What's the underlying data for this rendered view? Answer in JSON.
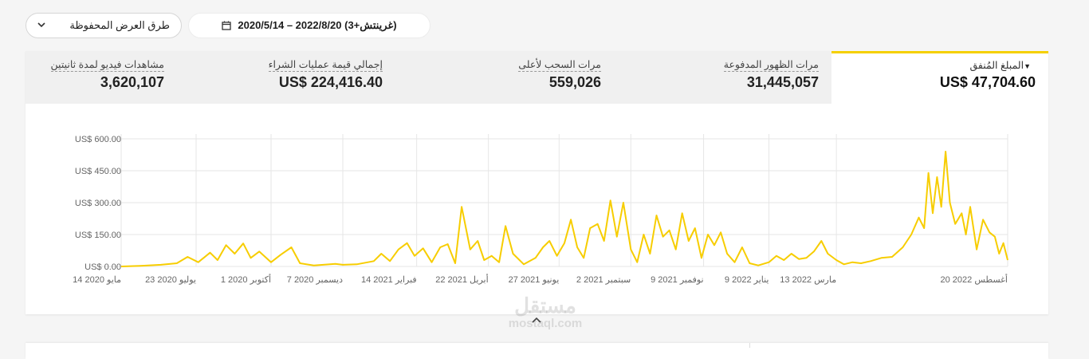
{
  "toolbar": {
    "saved_views_label": "طرق العرض المحفوظة",
    "date_range_label": "2020/5/14 – 2022/8/20 (غرينتش+3)",
    "chevron_icon": "chevron-down-icon",
    "calendar_icon": "calendar-icon"
  },
  "metrics": [
    {
      "label": "المبلغ المُنفق",
      "value": "US$ 47,704.60",
      "active": true
    },
    {
      "label": "مرات الظهور المدفوعة",
      "value": "31,445,057"
    },
    {
      "label": "مرات السحب لأعلى",
      "value": "559,026"
    },
    {
      "label": "إجمالي قيمة عمليات الشراء",
      "value": "US$ 224,416.40"
    },
    {
      "label": "مشاهدات فيديو لمدة ثانيتين",
      "value": "3,620,107"
    }
  ],
  "colors": {
    "accent": "#f5d000",
    "line": "#f7cd00",
    "grid": "#e6e6e6"
  },
  "watermark": {
    "arabic": "مستقل",
    "latin": "mostaql.com"
  },
  "chart_data": {
    "type": "line",
    "ylim": [
      0,
      600
    ],
    "y_ticks": [
      {
        "value": 0,
        "label": "US$ 0.00"
      },
      {
        "value": 150,
        "label": "US$ 150.00"
      },
      {
        "value": 300,
        "label": "US$ 300.00"
      },
      {
        "value": 450,
        "label": "US$ 450.00"
      },
      {
        "value": 600,
        "label": "US$ 600.00"
      }
    ],
    "x_range": [
      "2020-05-14",
      "2022-08-20"
    ],
    "x_ticks": [
      {
        "date": "2020-05-14",
        "label": "14 مايو 2020"
      },
      {
        "date": "2020-07-23",
        "label": "23 يوليو 2020"
      },
      {
        "date": "2020-10-01",
        "label": "1 أكتوبر 2020"
      },
      {
        "date": "2020-12-07",
        "label": "7 ديسمبر 2020"
      },
      {
        "date": "2021-02-14",
        "label": "14 فبراير 2021"
      },
      {
        "date": "2021-04-22",
        "label": "22 أبريل 2021"
      },
      {
        "date": "2021-06-27",
        "label": "27 يونيو 2021"
      },
      {
        "date": "2021-09-02",
        "label": "2 سبتمبر 2021"
      },
      {
        "date": "2021-11-09",
        "label": "9 نوفمبر 2021"
      },
      {
        "date": "2022-01-09",
        "label": "9 يناير 2022"
      },
      {
        "date": "2022-03-13",
        "label": "13 مارس 2022"
      },
      {
        "date": "2022-08-20",
        "label": "20 أغسطس 2022"
      }
    ],
    "series": [
      {
        "points": [
          [
            "2020-05-14",
            0
          ],
          [
            "2020-06-01",
            3
          ],
          [
            "2020-06-20",
            8
          ],
          [
            "2020-07-05",
            15
          ],
          [
            "2020-07-15",
            45
          ],
          [
            "2020-07-25",
            20
          ],
          [
            "2020-08-05",
            65
          ],
          [
            "2020-08-12",
            30
          ],
          [
            "2020-08-20",
            100
          ],
          [
            "2020-08-28",
            60
          ],
          [
            "2020-09-05",
            108
          ],
          [
            "2020-09-12",
            40
          ],
          [
            "2020-09-20",
            70
          ],
          [
            "2020-10-01",
            20
          ],
          [
            "2020-10-10",
            55
          ],
          [
            "2020-10-20",
            90
          ],
          [
            "2020-10-28",
            15
          ],
          [
            "2020-11-10",
            5
          ],
          [
            "2020-11-30",
            12
          ],
          [
            "2020-12-07",
            8
          ],
          [
            "2020-12-20",
            10
          ],
          [
            "2021-01-05",
            25
          ],
          [
            "2021-01-12",
            60
          ],
          [
            "2021-01-20",
            25
          ],
          [
            "2021-01-28",
            80
          ],
          [
            "2021-02-05",
            110
          ],
          [
            "2021-02-12",
            50
          ],
          [
            "2021-02-20",
            85
          ],
          [
            "2021-02-28",
            20
          ],
          [
            "2021-03-08",
            90
          ],
          [
            "2021-03-15",
            105
          ],
          [
            "2021-03-22",
            15
          ],
          [
            "2021-03-28",
            280
          ],
          [
            "2021-04-05",
            80
          ],
          [
            "2021-04-12",
            120
          ],
          [
            "2021-04-18",
            30
          ],
          [
            "2021-04-25",
            50
          ],
          [
            "2021-05-02",
            20
          ],
          [
            "2021-05-08",
            190
          ],
          [
            "2021-05-15",
            60
          ],
          [
            "2021-05-25",
            10
          ],
          [
            "2021-06-05",
            40
          ],
          [
            "2021-06-12",
            90
          ],
          [
            "2021-06-18",
            120
          ],
          [
            "2021-06-25",
            50
          ],
          [
            "2021-07-02",
            110
          ],
          [
            "2021-07-08",
            220
          ],
          [
            "2021-07-14",
            90
          ],
          [
            "2021-07-20",
            40
          ],
          [
            "2021-07-26",
            180
          ],
          [
            "2021-08-02",
            200
          ],
          [
            "2021-08-08",
            120
          ],
          [
            "2021-08-14",
            310
          ],
          [
            "2021-08-20",
            140
          ],
          [
            "2021-08-26",
            300
          ],
          [
            "2021-09-02",
            80
          ],
          [
            "2021-09-08",
            20
          ],
          [
            "2021-09-14",
            150
          ],
          [
            "2021-09-20",
            60
          ],
          [
            "2021-09-26",
            240
          ],
          [
            "2021-10-02",
            140
          ],
          [
            "2021-10-08",
            170
          ],
          [
            "2021-10-14",
            80
          ],
          [
            "2021-10-20",
            250
          ],
          [
            "2021-10-26",
            120
          ],
          [
            "2021-11-01",
            180
          ],
          [
            "2021-11-07",
            40
          ],
          [
            "2021-11-13",
            150
          ],
          [
            "2021-11-19",
            100
          ],
          [
            "2021-11-25",
            160
          ],
          [
            "2021-12-01",
            60
          ],
          [
            "2021-12-08",
            20
          ],
          [
            "2021-12-15",
            90
          ],
          [
            "2021-12-22",
            15
          ],
          [
            "2021-12-30",
            5
          ],
          [
            "2022-01-09",
            20
          ],
          [
            "2022-01-16",
            50
          ],
          [
            "2022-01-23",
            30
          ],
          [
            "2022-01-30",
            60
          ],
          [
            "2022-02-06",
            35
          ],
          [
            "2022-02-13",
            40
          ],
          [
            "2022-02-20",
            70
          ],
          [
            "2022-02-27",
            120
          ],
          [
            "2022-03-05",
            60
          ],
          [
            "2022-03-13",
            30
          ],
          [
            "2022-03-20",
            10
          ],
          [
            "2022-03-28",
            20
          ],
          [
            "2022-04-05",
            15
          ],
          [
            "2022-04-14",
            25
          ],
          [
            "2022-04-24",
            40
          ],
          [
            "2022-05-04",
            45
          ],
          [
            "2022-05-14",
            90
          ],
          [
            "2022-05-22",
            150
          ],
          [
            "2022-05-29",
            230
          ],
          [
            "2022-06-03",
            180
          ],
          [
            "2022-06-07",
            440
          ],
          [
            "2022-06-11",
            250
          ],
          [
            "2022-06-15",
            420
          ],
          [
            "2022-06-19",
            280
          ],
          [
            "2022-06-23",
            540
          ],
          [
            "2022-06-27",
            300
          ],
          [
            "2022-07-02",
            200
          ],
          [
            "2022-07-08",
            250
          ],
          [
            "2022-07-12",
            150
          ],
          [
            "2022-07-16",
            280
          ],
          [
            "2022-07-22",
            80
          ],
          [
            "2022-07-28",
            220
          ],
          [
            "2022-08-03",
            160
          ],
          [
            "2022-08-08",
            140
          ],
          [
            "2022-08-12",
            60
          ],
          [
            "2022-08-16",
            110
          ],
          [
            "2022-08-20",
            30
          ]
        ]
      }
    ]
  }
}
